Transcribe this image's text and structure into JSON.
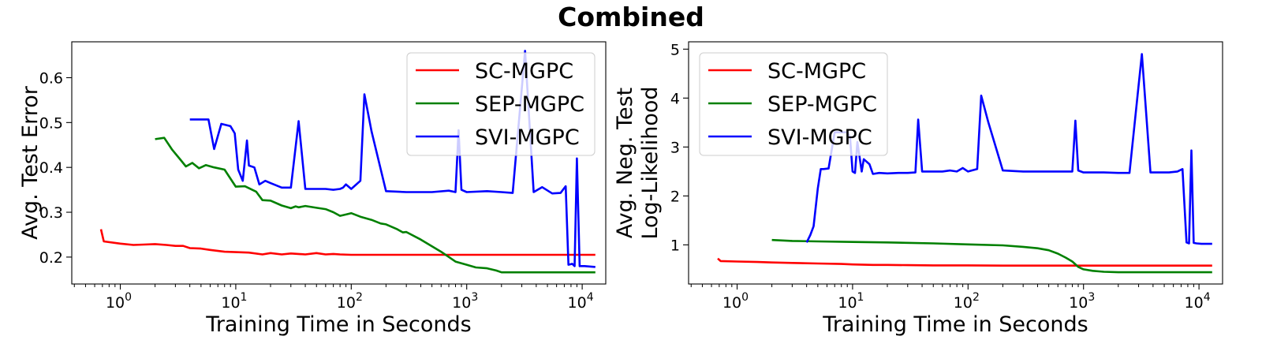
{
  "figure": {
    "title": "Combined"
  },
  "chart_data": [
    {
      "type": "line",
      "xlabel": "Training Time in Seconds",
      "ylabel": "Avg. Test Error",
      "xscale": "log",
      "xlim": [
        0.38,
        16000
      ],
      "ylim": [
        0.14,
        0.68
      ],
      "x_ticks": [
        1,
        10,
        100,
        1000,
        10000
      ],
      "x_tick_labels": [
        [
          "10",
          "0"
        ],
        [
          "10",
          "1"
        ],
        [
          "10",
          "2"
        ],
        [
          "10",
          "3"
        ],
        [
          "10",
          "4"
        ]
      ],
      "y_ticks": [
        0.2,
        0.3,
        0.4,
        0.5,
        0.6
      ],
      "y_tick_labels": [
        "0.2",
        "0.3",
        "0.4",
        "0.5",
        "0.6"
      ],
      "grid": false,
      "legend": "top-right",
      "series": [
        {
          "name": "SC-MGPC",
          "color": "#ff0000",
          "x": [
            0.68,
            0.72,
            1,
            1.3,
            1.6,
            2,
            2.5,
            3,
            3.5,
            4,
            5,
            6,
            8,
            10,
            13,
            17,
            20,
            25,
            30,
            40,
            50,
            60,
            70,
            80,
            100,
            200,
            500,
            1000,
            2000,
            5000,
            13000
          ],
          "y": [
            0.262,
            0.235,
            0.23,
            0.227,
            0.228,
            0.229,
            0.227,
            0.225,
            0.225,
            0.22,
            0.219,
            0.216,
            0.212,
            0.211,
            0.21,
            0.206,
            0.209,
            0.206,
            0.208,
            0.206,
            0.209,
            0.206,
            0.207,
            0.206,
            0.205,
            0.205,
            0.205,
            0.205,
            0.205,
            0.205,
            0.205
          ]
        },
        {
          "name": "SEP-MGPC",
          "color": "#008000",
          "x": [
            2,
            2.4,
            2.8,
            3.3,
            3.7,
            4.2,
            4.8,
            5.5,
            6.5,
            8,
            10,
            12,
            15,
            17,
            20,
            25,
            30,
            33,
            35,
            40,
            50,
            60,
            70,
            80,
            90,
            100,
            120,
            150,
            180,
            200,
            250,
            280,
            300,
            400,
            600,
            800,
            1000,
            1200,
            1500,
            1800,
            2000,
            5000,
            13000
          ],
          "y": [
            0.463,
            0.466,
            0.44,
            0.418,
            0.402,
            0.41,
            0.398,
            0.405,
            0.4,
            0.395,
            0.357,
            0.358,
            0.346,
            0.327,
            0.326,
            0.315,
            0.309,
            0.313,
            0.311,
            0.314,
            0.31,
            0.307,
            0.3,
            0.292,
            0.295,
            0.298,
            0.29,
            0.283,
            0.275,
            0.273,
            0.262,
            0.255,
            0.256,
            0.239,
            0.212,
            0.19,
            0.183,
            0.177,
            0.175,
            0.17,
            0.166,
            0.166,
            0.166
          ]
        },
        {
          "name": "SVI-MGPC",
          "color": "#0000ff",
          "x": [
            4,
            5,
            5.8,
            6.5,
            7.5,
            9,
            9.8,
            10.5,
            11.5,
            12.5,
            13,
            14.5,
            16,
            18,
            20,
            25,
            30,
            35,
            40,
            50,
            60,
            70,
            80,
            85,
            90,
            100,
            120,
            130,
            150,
            200,
            300,
            500,
            700,
            800,
            850,
            900,
            1000,
            1500,
            2000,
            2500,
            3200,
            3800,
            4500,
            5500,
            6500,
            7200,
            7600,
            8200,
            8600,
            9000,
            9500,
            10500,
            13000
          ],
          "y": [
            0.507,
            0.507,
            0.507,
            0.441,
            0.497,
            0.492,
            0.476,
            0.395,
            0.37,
            0.46,
            0.404,
            0.4,
            0.362,
            0.37,
            0.365,
            0.355,
            0.355,
            0.503,
            0.352,
            0.352,
            0.352,
            0.35,
            0.352,
            0.355,
            0.362,
            0.352,
            0.37,
            0.563,
            0.48,
            0.347,
            0.345,
            0.345,
            0.348,
            0.345,
            0.483,
            0.35,
            0.345,
            0.347,
            0.345,
            0.343,
            0.66,
            0.345,
            0.356,
            0.342,
            0.343,
            0.358,
            0.183,
            0.185,
            0.18,
            0.42,
            0.18,
            0.18,
            0.178
          ]
        }
      ]
    },
    {
      "type": "line",
      "xlabel": "Training Time in Seconds",
      "ylabel": "Avg. Neg. Test\nLog-Likelihood",
      "xscale": "log",
      "xlim": [
        0.38,
        16000
      ],
      "ylim": [
        0.2,
        5.15
      ],
      "x_ticks": [
        1,
        10,
        100,
        1000,
        10000
      ],
      "x_tick_labels": [
        [
          "10",
          "0"
        ],
        [
          "10",
          "1"
        ],
        [
          "10",
          "2"
        ],
        [
          "10",
          "3"
        ],
        [
          "10",
          "4"
        ]
      ],
      "y_ticks": [
        1,
        2,
        3,
        4,
        5
      ],
      "y_tick_labels": [
        "1",
        "2",
        "3",
        "4",
        "5"
      ],
      "grid": false,
      "legend": "top-left",
      "series": [
        {
          "name": "SC-MGPC",
          "color": "#ff0000",
          "x": [
            0.68,
            0.72,
            1,
            1.5,
            2,
            3,
            5,
            8,
            10,
            15,
            20,
            30,
            50,
            100,
            200,
            500,
            1000,
            2000,
            5000,
            13000
          ],
          "y": [
            0.72,
            0.67,
            0.66,
            0.65,
            0.64,
            0.63,
            0.62,
            0.61,
            0.6,
            0.59,
            0.59,
            0.585,
            0.58,
            0.58,
            0.575,
            0.575,
            0.575,
            0.575,
            0.575,
            0.575
          ]
        },
        {
          "name": "SEP-MGPC",
          "color": "#008000",
          "x": [
            2,
            3,
            5,
            10,
            20,
            50,
            100,
            200,
            300,
            400,
            500,
            600,
            700,
            800,
            900,
            1000,
            1200,
            1500,
            2000,
            5000,
            13000
          ],
          "y": [
            1.1,
            1.08,
            1.07,
            1.06,
            1.05,
            1.03,
            1.01,
            0.99,
            0.96,
            0.93,
            0.89,
            0.82,
            0.74,
            0.66,
            0.55,
            0.5,
            0.47,
            0.45,
            0.44,
            0.44,
            0.44
          ]
        },
        {
          "name": "SVI-MGPC",
          "color": "#0000ff",
          "x": [
            4,
            4.3,
            4.6,
            5,
            5.3,
            5.6,
            6.2,
            7,
            8,
            9,
            9.5,
            10,
            10.5,
            11,
            12,
            12.5,
            14,
            15,
            17,
            20,
            25,
            30,
            35,
            37,
            40,
            50,
            60,
            70,
            80,
            90,
            100,
            120,
            130,
            150,
            200,
            300,
            500,
            700,
            800,
            850,
            900,
            1000,
            1500,
            2000,
            2500,
            3200,
            3800,
            4500,
            5500,
            6500,
            7200,
            7800,
            8200,
            8600,
            9000,
            9500,
            10500,
            13000
          ],
          "y": [
            1.05,
            1.2,
            1.38,
            2.15,
            2.55,
            2.55,
            2.56,
            3.3,
            3.3,
            3.3,
            3.2,
            2.5,
            2.47,
            3.1,
            2.5,
            2.75,
            2.65,
            2.45,
            2.47,
            2.46,
            2.47,
            2.47,
            2.48,
            3.56,
            2.5,
            2.5,
            2.5,
            2.52,
            2.5,
            2.57,
            2.5,
            2.55,
            4.05,
            3.5,
            2.52,
            2.5,
            2.5,
            2.5,
            2.5,
            3.54,
            2.52,
            2.48,
            2.48,
            2.47,
            2.47,
            4.9,
            2.48,
            2.48,
            2.48,
            2.5,
            2.55,
            1.05,
            1.03,
            2.93,
            1.04,
            1.03,
            1.02,
            1.02
          ]
        }
      ]
    }
  ]
}
